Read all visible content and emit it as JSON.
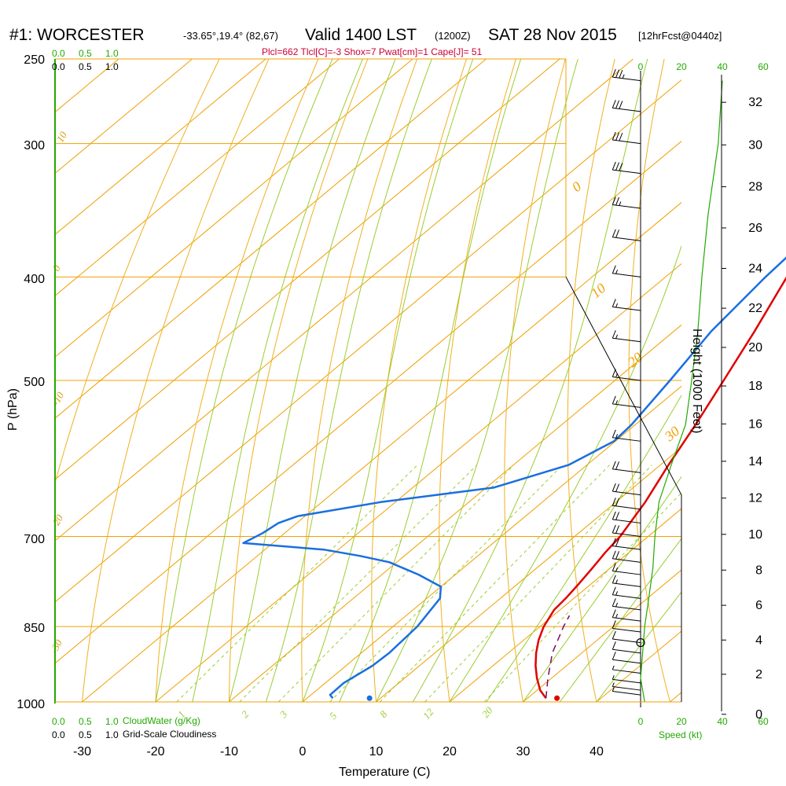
{
  "header": {
    "station": "#1: WORCESTER",
    "coords": "-33.65°,19.4° (82,67)",
    "valid": "Valid 1400 LST",
    "utc": "(1200Z)",
    "date": "SAT 28 Nov 2015",
    "forecast": "[12hrFcst@0440z]",
    "indices": "Plcl=662 Tlcl[C]=-3 Shox=7 Pwat[cm]=1 Cape[J]= 51"
  },
  "labels": {
    "pressure_axis": "P (hPa)",
    "temperature_axis": "Temperature (C)",
    "height_axis": "Height (1000 Feet)",
    "cloudwater": "CloudWater (g/Kg)",
    "cloudiness": "Grid-Scale Cloudiness",
    "speed": "Speed (kt)"
  },
  "colors": {
    "temperature": "#e00000",
    "dewpoint": "#1a6fe0",
    "parcel": "#7a0a6a",
    "isotherm": "#f0a000",
    "dry_adiabat": "#f0b020",
    "moist_adiabat": "#9acd32",
    "mixing_ratio": "#9acd32",
    "wind_speed": "#22aa00"
  },
  "chart_data": {
    "type": "line",
    "title": "#1: WORCESTER Valid 1400 LST (1200Z) SAT 28 Nov 2015",
    "xlabel": "Temperature (C)",
    "ylabel": "P (hPa)",
    "xlim": [
      -35,
      45
    ],
    "ylim": [
      1000,
      250
    ],
    "yscale": "log",
    "pressure_ticks": [
      1000,
      850,
      700,
      500,
      400,
      300,
      250
    ],
    "temperature_ticks": [
      -30,
      -20,
      -10,
      0,
      10,
      20,
      30,
      40
    ],
    "isotherm_labels": [
      "10",
      "0",
      "-10",
      "-20",
      "-30",
      "30",
      "20",
      "10",
      "0"
    ],
    "mixing_ratio_labels": [
      "1",
      "2",
      "3",
      "5",
      "8",
      "12",
      "20"
    ],
    "cloud_scale": [
      "0.0",
      "0.5",
      "1.0"
    ],
    "height_ticks": [
      0,
      2,
      4,
      6,
      8,
      10,
      12,
      14,
      16,
      18,
      20,
      22,
      24,
      26,
      28,
      30,
      32
    ],
    "wind_speed_ticks": [
      0,
      20,
      40,
      60
    ],
    "series": [
      {
        "key": "temperature",
        "points": [
          [
            992,
            32.5
          ],
          [
            975,
            30.4
          ],
          [
            950,
            28
          ],
          [
            925,
            25.8
          ],
          [
            900,
            23.8
          ],
          [
            875,
            22
          ],
          [
            850,
            20.5
          ],
          [
            820,
            19.2
          ],
          [
            800,
            18.9
          ],
          [
            775,
            18.3
          ],
          [
            750,
            17.6
          ],
          [
            725,
            16.8
          ],
          [
            700,
            16.2
          ],
          [
            650,
            14
          ],
          [
            600,
            11.1
          ],
          [
            550,
            8.2
          ],
          [
            500,
            4.8
          ],
          [
            450,
            1.0
          ],
          [
            400,
            -3.5
          ],
          [
            350,
            -8.9
          ],
          [
            325,
            -12.8
          ],
          [
            300,
            -17.2
          ],
          [
            275,
            -22
          ],
          [
            262,
            -24.8
          ]
        ]
      },
      {
        "key": "dewpoint",
        "points": [
          [
            992,
            3.5
          ],
          [
            985,
            2.6
          ],
          [
            960,
            2.5
          ],
          [
            925,
            3.6
          ],
          [
            900,
            3.8
          ],
          [
            850,
            3.3
          ],
          [
            800,
            1.8
          ],
          [
            780,
            0.0
          ],
          [
            760,
            -5
          ],
          [
            750,
            -8
          ],
          [
            740,
            -11
          ],
          [
            730,
            -16
          ],
          [
            720,
            -22
          ],
          [
            710,
            -34
          ],
          [
            695,
            -33
          ],
          [
            680,
            -32.5
          ],
          [
            670,
            -31
          ],
          [
            650,
            -22
          ],
          [
            630,
            -9
          ],
          [
            600,
            -2.5
          ],
          [
            570,
            -0.2
          ],
          [
            550,
            -0.5
          ],
          [
            500,
            -2.5
          ],
          [
            450,
            -4.9
          ],
          [
            400,
            -6.4
          ],
          [
            380,
            -6.8
          ],
          [
            350,
            -8.5
          ],
          [
            325,
            -11.5
          ],
          [
            300,
            -16.0
          ],
          [
            275,
            -21.5
          ],
          [
            262,
            -24.5
          ]
        ]
      },
      {
        "key": "parcel",
        "points": [
          [
            992,
            32.5
          ],
          [
            950,
            29.5
          ],
          [
            900,
            26
          ],
          [
            850,
            23.2
          ],
          [
            830,
            22.2
          ]
        ]
      }
    ],
    "surface_points": [
      {
        "key": "dewpoint",
        "p": 992,
        "t": 8.5
      },
      {
        "key": "temperature",
        "p": 992,
        "t": 34
      }
    ],
    "wind_barbs": [
      {
        "p": 985,
        "speed": 5
      },
      {
        "p": 975,
        "speed": 5
      },
      {
        "p": 960,
        "speed": 5
      },
      {
        "p": 940,
        "speed": 5
      },
      {
        "p": 920,
        "speed": 10
      },
      {
        "p": 900,
        "speed": 10
      },
      {
        "p": 880,
        "speed": 10
      },
      {
        "p": 860,
        "speed": 10
      },
      {
        "p": 840,
        "speed": 15
      },
      {
        "p": 820,
        "speed": 15
      },
      {
        "p": 800,
        "speed": 15
      },
      {
        "p": 780,
        "speed": 15
      },
      {
        "p": 760,
        "speed": 15
      },
      {
        "p": 740,
        "speed": 20
      },
      {
        "p": 720,
        "speed": 20
      },
      {
        "p": 700,
        "speed": 20
      },
      {
        "p": 680,
        "speed": 20
      },
      {
        "p": 660,
        "speed": 20
      },
      {
        "p": 640,
        "speed": 20
      },
      {
        "p": 610,
        "speed": 20
      },
      {
        "p": 570,
        "speed": 15
      },
      {
        "p": 530,
        "speed": 15
      },
      {
        "p": 500,
        "speed": 15
      },
      {
        "p": 460,
        "speed": 15
      },
      {
        "p": 430,
        "speed": 15
      },
      {
        "p": 400,
        "speed": 15
      },
      {
        "p": 370,
        "speed": 20
      },
      {
        "p": 345,
        "speed": 25
      },
      {
        "p": 320,
        "speed": 30
      },
      {
        "p": 300,
        "speed": 30
      },
      {
        "p": 280,
        "speed": 30
      },
      {
        "p": 262,
        "speed": 35
      }
    ],
    "wind_speed_profile": [
      [
        1000,
        2
      ],
      [
        950,
        0
      ],
      [
        900,
        1
      ],
      [
        850,
        2
      ],
      [
        800,
        4
      ],
      [
        750,
        6
      ],
      [
        700,
        7
      ],
      [
        650,
        9
      ],
      [
        600,
        15
      ],
      [
        550,
        22
      ],
      [
        500,
        25
      ],
      [
        450,
        28
      ],
      [
        400,
        30
      ],
      [
        350,
        33
      ],
      [
        300,
        38
      ],
      [
        262,
        40
      ]
    ]
  }
}
